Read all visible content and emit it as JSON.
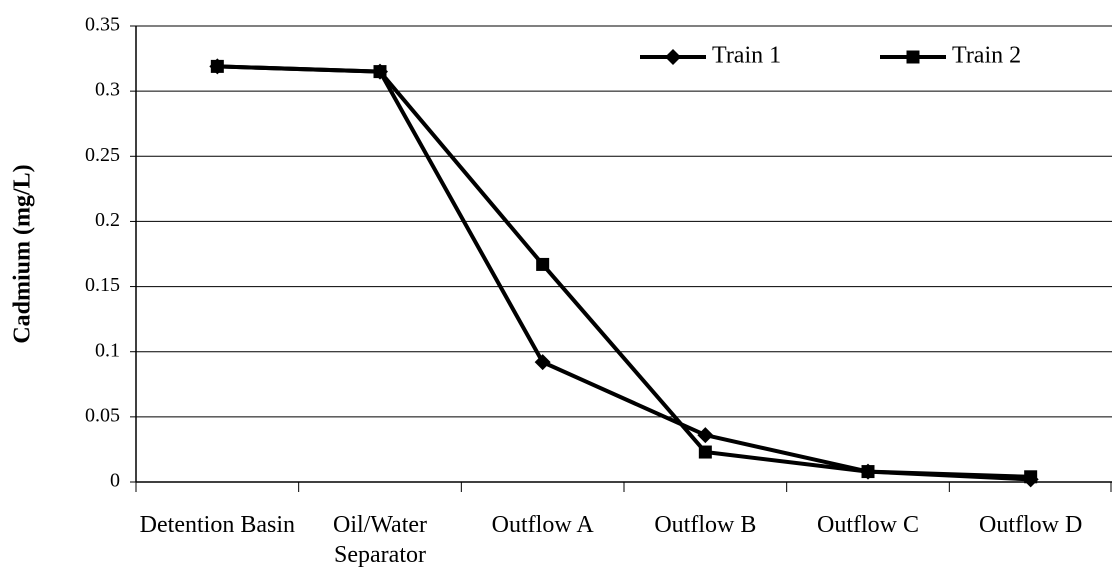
{
  "chart_data": {
    "type": "line",
    "ylabel": "Cadmium (mg/L)",
    "categories": [
      "Detention Basin",
      "Oil/Water Separator",
      "Outflow A",
      "Outflow B",
      "Outflow C",
      "Outflow D"
    ],
    "series": [
      {
        "name": "Train 1",
        "color": "#000000",
        "marker": "diamond",
        "values": [
          0.319,
          0.315,
          0.092,
          0.036,
          0.008,
          0.002
        ]
      },
      {
        "name": "Train 2",
        "color": "#000000",
        "marker": "square",
        "values": [
          0.319,
          0.315,
          0.167,
          0.023,
          0.008,
          0.004
        ]
      }
    ],
    "ylim": [
      0,
      0.35
    ],
    "yticks": [
      0,
      0.05,
      0.1,
      0.15,
      0.2,
      0.25,
      0.3,
      0.35
    ],
    "grid": true,
    "legend": "upper right"
  }
}
